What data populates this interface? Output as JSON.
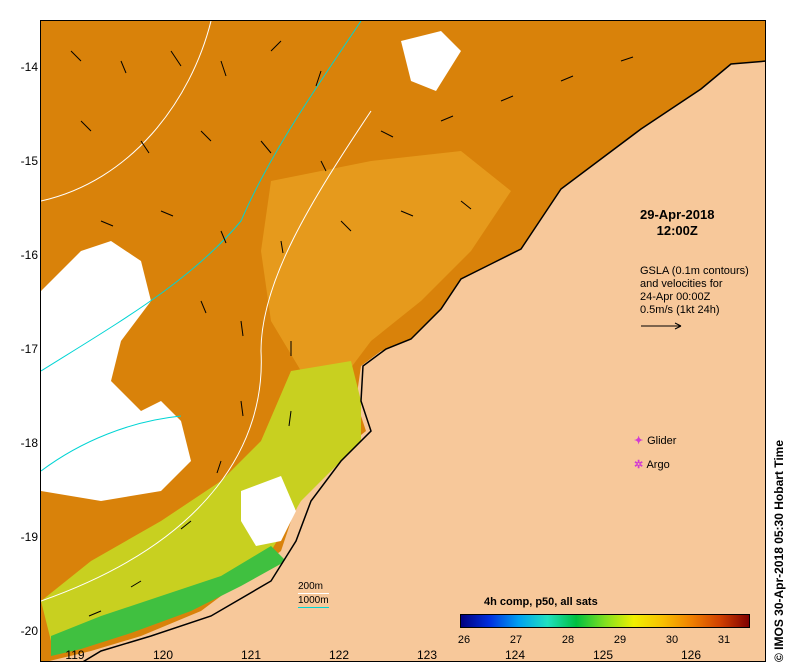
{
  "map": {
    "y_ticks": [
      "-14",
      "-15",
      "-16",
      "-17",
      "-18",
      "-19",
      "-20"
    ],
    "x_ticks": [
      "119",
      "120",
      "121",
      "122",
      "123",
      "124",
      "125",
      "126"
    ],
    "date_line1": "29-Apr-2018",
    "date_line2": "12:00Z",
    "gsla_lines": [
      "GSLA (0.1m contours)",
      "and velocities for",
      "24-Apr 00:00Z",
      "0.5m/s (1kt 24h)"
    ],
    "legend_glider": "Glider",
    "legend_argo": "Argo",
    "credit": "© IMOS 30-Apr-2018 05:30 Hobart Time",
    "colorbar_title": "4h comp, p50, all sats",
    "colorbar_ticks": [
      "26",
      "27",
      "28",
      "29",
      "30",
      "31"
    ],
    "depth_200": "200m",
    "depth_1000": "1000m",
    "colors": {
      "land": "#f7c89a",
      "warm_sst": "#d9820a",
      "mid_sst": "#e8a020",
      "cool_sst": "#c8d020",
      "cold_sst": "#40c040",
      "cloud": "#ffffff",
      "isobath_200": "#ffffff",
      "isobath_1000": "#00d4d4",
      "markers": "#d23ad2"
    }
  }
}
